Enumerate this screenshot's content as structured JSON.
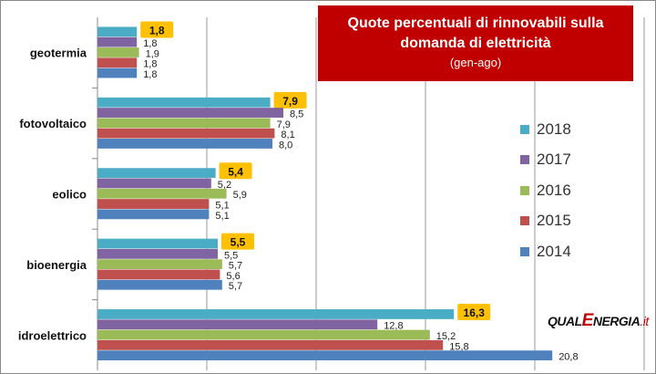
{
  "chart_data": {
    "type": "bar",
    "orientation": "horizontal",
    "title": "Quote percentuali di rinnovabili sulla domanda di elettricità",
    "subtitle": "(gen-ago)",
    "categories": [
      "geotermia",
      "fotovoltaico",
      "eolico",
      "bioenergia",
      "idroelettrico"
    ],
    "series": [
      {
        "name": "2018",
        "color": "#4BACC6",
        "highlight": true,
        "labels": [
          "1,8",
          "7,9",
          "5,4",
          "5,5",
          "16,3"
        ],
        "values": [
          1.8,
          7.9,
          5.4,
          5.5,
          16.3
        ]
      },
      {
        "name": "2017",
        "color": "#8064A2",
        "labels": [
          "1,8",
          "8,5",
          "5,2",
          "5,5",
          "12,8"
        ],
        "values": [
          1.8,
          8.5,
          5.2,
          5.5,
          12.8
        ]
      },
      {
        "name": "2016",
        "color": "#9BBB59",
        "labels": [
          "1,9",
          "7,9",
          "5,9",
          "5,7",
          "15,2"
        ],
        "values": [
          1.9,
          7.9,
          5.9,
          5.7,
          15.2
        ]
      },
      {
        "name": "2015",
        "color": "#C0504D",
        "labels": [
          "1,8",
          "8,1",
          "5,1",
          "5,6",
          "15,8"
        ],
        "values": [
          1.8,
          8.1,
          5.1,
          5.6,
          15.8
        ]
      },
      {
        "name": "2014",
        "color": "#4F81BD",
        "labels": [
          "1,8",
          "8,0",
          "5,1",
          "5,7",
          "20,8"
        ],
        "values": [
          1.8,
          8.0,
          5.1,
          5.7,
          20.8
        ]
      }
    ],
    "xlim": [
      0,
      25
    ],
    "grid": true,
    "legend_position": "right",
    "highlight_color": "#FFC000"
  },
  "logo": {
    "qual": "QUAL",
    "e": "E",
    "nergia": "NERGIA",
    "it": ".it"
  }
}
